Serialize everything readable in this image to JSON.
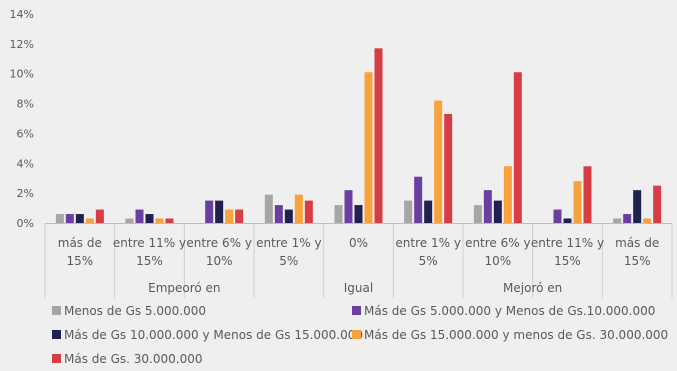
{
  "chart_data": {
    "type": "bar",
    "ylim": [
      0,
      14
    ],
    "y_ticks": [
      "0%",
      "2%",
      "4%",
      "6%",
      "8%",
      "10%",
      "12%",
      "14%"
    ],
    "grid": false,
    "legend_placement": "bottom",
    "categories": [
      {
        "line1": "más de",
        "line2": "15%"
      },
      {
        "line1": "entre 11% y",
        "line2": "15%"
      },
      {
        "line1": "entre 6% y",
        "line2": "10%"
      },
      {
        "line1": "entre 1% y",
        "line2": "5%"
      },
      {
        "line1": "0%",
        "line2": ""
      },
      {
        "line1": "entre 1% y",
        "line2": "5%"
      },
      {
        "line1": "entre 6% y",
        "line2": "10%"
      },
      {
        "line1": "entre 11% y",
        "line2": "15%"
      },
      {
        "line1": "más de",
        "line2": "15%"
      }
    ],
    "groups": [
      {
        "label": "Empeoró en",
        "start": 0,
        "end": 3
      },
      {
        "label": "Igual",
        "start": 4,
        "end": 4
      },
      {
        "label": "Mejoró en",
        "start": 5,
        "end": 8
      }
    ],
    "series": [
      {
        "name": "Menos de Gs 5.000.000",
        "color": "#a6a6a6",
        "values": [
          0.6,
          0.3,
          0.0,
          1.9,
          1.2,
          1.5,
          1.2,
          0.0,
          0.3
        ]
      },
      {
        "name": "Más de Gs 5.000.000 y Menos de Gs.10.000.000",
        "color": "#6a3fa0",
        "values": [
          0.6,
          0.9,
          1.5,
          1.2,
          2.2,
          3.1,
          2.2,
          0.9,
          0.6
        ]
      },
      {
        "name": "Más de Gs 10.000.000 y Menos de Gs 15.000.000",
        "color": "#1f2250",
        "values": [
          0.6,
          0.6,
          1.5,
          0.9,
          1.2,
          1.5,
          1.5,
          0.3,
          2.2
        ]
      },
      {
        "name": "Más de Gs 15.000.000 y menos de Gs. 30.000.000",
        "color": "#f7a23c",
        "values": [
          0.3,
          0.3,
          0.9,
          1.9,
          10.1,
          8.2,
          3.8,
          2.8,
          0.3
        ]
      },
      {
        "name": "Más de Gs. 30.000.000",
        "color": "#d63d45",
        "values": [
          0.9,
          0.3,
          0.9,
          1.5,
          11.7,
          7.3,
          10.1,
          3.8,
          2.5
        ]
      }
    ]
  }
}
